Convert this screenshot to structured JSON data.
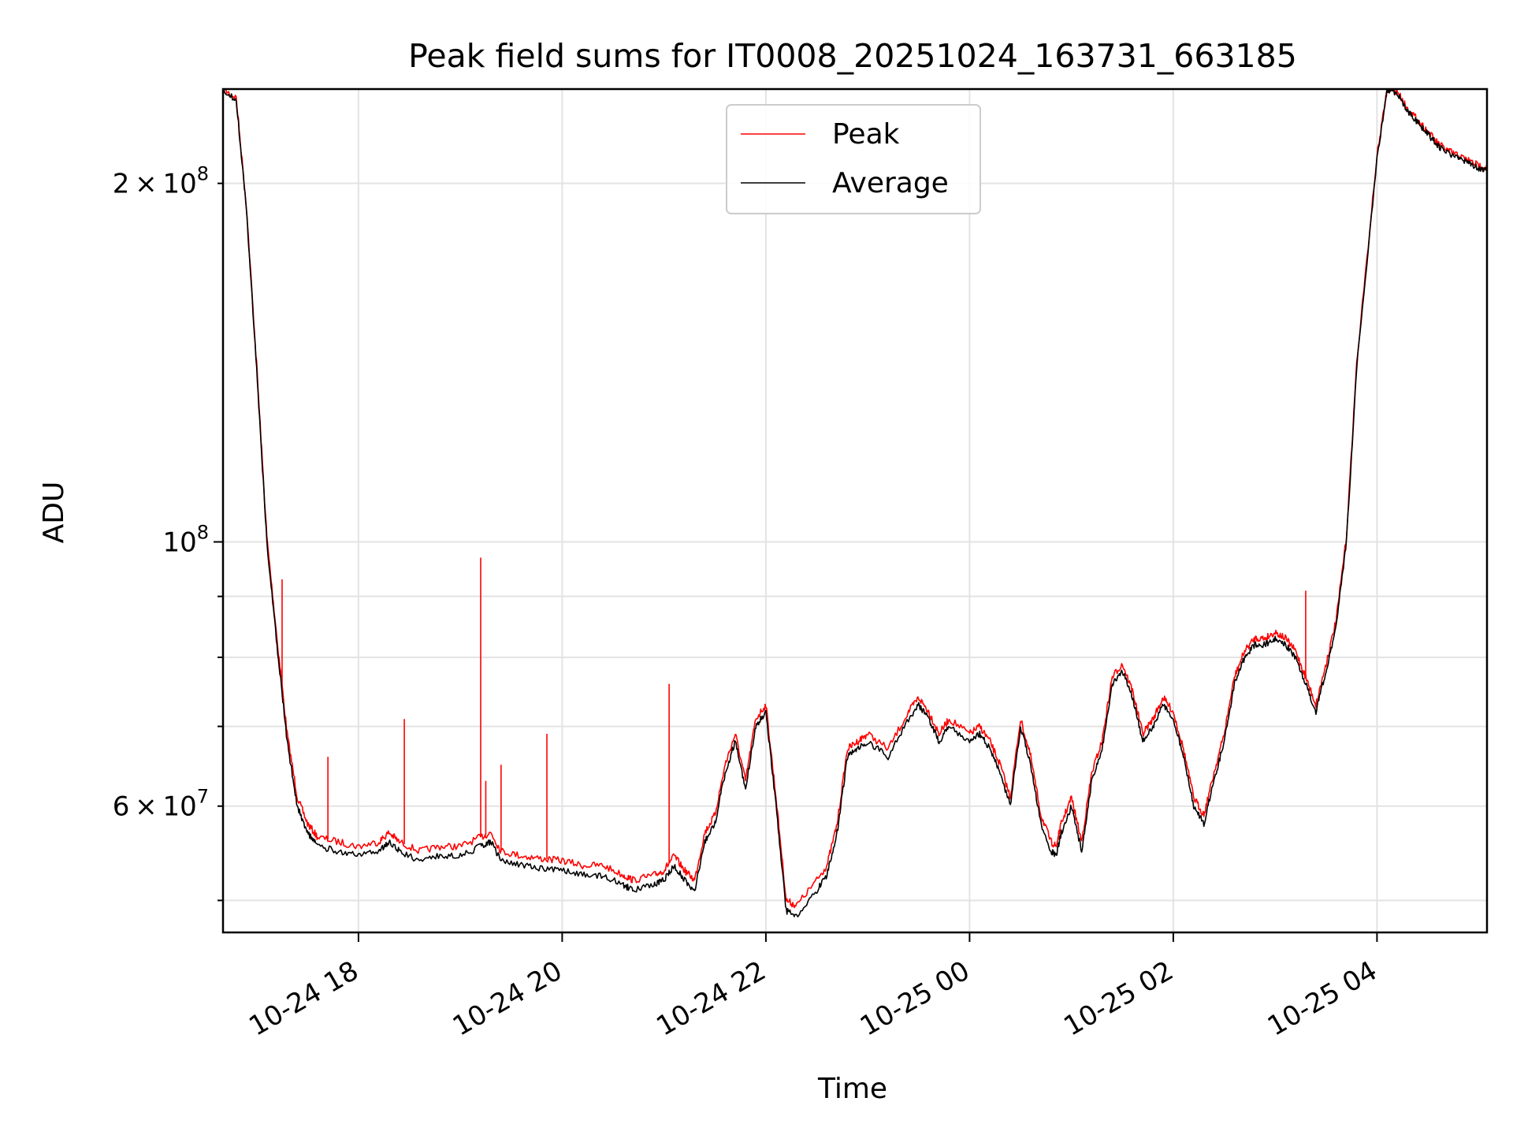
{
  "chart_data": {
    "type": "line",
    "title": "Peak field sums for IT0008_20251024_163731_663185",
    "xlabel": "Time",
    "ylabel": "ADU",
    "yscale": "log",
    "xlim": [
      16.67,
      29.08
    ],
    "ylim": [
      47000000,
      240000000
    ],
    "grid": true,
    "legend_position": "upper center",
    "x_ticks": [
      {
        "value": 18,
        "label": "10-24 18"
      },
      {
        "value": 20,
        "label": "10-24 20"
      },
      {
        "value": 22,
        "label": "10-24 22"
      },
      {
        "value": 24,
        "label": "10-25 00"
      },
      {
        "value": 26,
        "label": "10-25 02"
      },
      {
        "value": 28,
        "label": "10-25 04"
      }
    ],
    "y_ticks_major": [
      {
        "value": 100000000,
        "base": "10",
        "exp": "8",
        "label": "10^8"
      }
    ],
    "y_ticks_minor": [
      {
        "value": 60000000,
        "mant": "6",
        "base": "10",
        "exp": "7",
        "label": "6×10^7"
      },
      {
        "value": 200000000,
        "mant": "2",
        "base": "10",
        "exp": "8",
        "label": "2×10^8"
      }
    ],
    "y_gridlines": [
      50000000,
      60000000,
      70000000,
      80000000,
      90000000,
      100000000,
      200000000
    ],
    "series": [
      {
        "name": "Average",
        "color": "#000000",
        "x": [
          16.67,
          16.8,
          16.9,
          17.0,
          17.1,
          17.2,
          17.3,
          17.4,
          17.5,
          17.6,
          17.8,
          18.0,
          18.2,
          18.3,
          18.4,
          18.6,
          18.8,
          19.0,
          19.2,
          19.3,
          19.4,
          19.6,
          19.8,
          20.0,
          20.2,
          20.4,
          20.6,
          20.7,
          20.9,
          21.0,
          21.1,
          21.2,
          21.3,
          21.4,
          21.5,
          21.6,
          21.7,
          21.8,
          21.9,
          22.0,
          22.1,
          22.2,
          22.3,
          22.5,
          22.6,
          22.7,
          22.8,
          22.9,
          23.0,
          23.2,
          23.4,
          23.5,
          23.6,
          23.7,
          23.8,
          24.0,
          24.1,
          24.2,
          24.3,
          24.4,
          24.5,
          24.6,
          24.7,
          24.8,
          24.85,
          24.9,
          25.0,
          25.1,
          25.2,
          25.3,
          25.4,
          25.5,
          25.6,
          25.7,
          25.8,
          25.9,
          26.0,
          26.1,
          26.2,
          26.3,
          26.4,
          26.5,
          26.6,
          26.7,
          26.8,
          26.9,
          27.0,
          27.1,
          27.2,
          27.3,
          27.4,
          27.5,
          27.6,
          27.7,
          27.8,
          28.0,
          28.1,
          28.2,
          28.3,
          28.4,
          28.5,
          28.6,
          28.7,
          28.8,
          28.9,
          29.0,
          29.08
        ],
        "values": [
          240000000,
          235000000,
          190000000,
          140000000,
          100000000,
          82000000,
          68000000,
          60000000,
          57000000,
          55500000,
          55000000,
          54500000,
          55000000,
          56000000,
          55000000,
          54000000,
          54500000,
          54500000,
          55500000,
          56000000,
          54000000,
          53500000,
          53200000,
          53000000,
          52500000,
          52500000,
          51500000,
          51000000,
          51500000,
          52000000,
          53500000,
          52000000,
          51000000,
          56000000,
          58000000,
          64000000,
          68000000,
          62000000,
          70000000,
          72000000,
          60000000,
          49000000,
          48500000,
          51000000,
          52500000,
          57000000,
          66000000,
          67000000,
          68000000,
          66000000,
          71000000,
          73000000,
          71000000,
          68000000,
          70000000,
          68000000,
          69000000,
          67000000,
          64000000,
          60000000,
          70000000,
          65000000,
          58000000,
          55000000,
          54500000,
          57000000,
          60000000,
          55000000,
          63000000,
          67000000,
          76000000,
          78000000,
          74000000,
          68000000,
          70000000,
          73000000,
          71000000,
          66000000,
          60000000,
          58000000,
          63000000,
          68000000,
          76000000,
          80000000,
          82000000,
          82000000,
          83000000,
          82000000,
          80000000,
          76000000,
          72000000,
          78000000,
          85000000,
          100000000,
          140000000,
          210000000,
          240000000,
          238000000,
          230000000,
          225000000,
          220000000,
          215000000,
          212000000,
          210000000,
          208000000,
          206000000,
          205000000
        ]
      },
      {
        "name": "Peak",
        "color": "#ff0000",
        "x": [
          16.67,
          16.8,
          16.9,
          17.0,
          17.1,
          17.2,
          17.3,
          17.4,
          17.5,
          17.6,
          17.8,
          18.0,
          18.2,
          18.3,
          18.4,
          18.6,
          18.8,
          19.0,
          19.2,
          19.3,
          19.4,
          19.6,
          19.8,
          20.0,
          20.2,
          20.4,
          20.6,
          20.7,
          20.9,
          21.0,
          21.1,
          21.2,
          21.3,
          21.4,
          21.5,
          21.6,
          21.7,
          21.8,
          21.9,
          22.0,
          22.1,
          22.2,
          22.3,
          22.5,
          22.6,
          22.7,
          22.8,
          22.9,
          23.0,
          23.2,
          23.4,
          23.5,
          23.6,
          23.7,
          23.8,
          24.0,
          24.1,
          24.2,
          24.3,
          24.4,
          24.5,
          24.6,
          24.7,
          24.8,
          24.85,
          24.9,
          25.0,
          25.1,
          25.2,
          25.3,
          25.4,
          25.5,
          25.6,
          25.7,
          25.8,
          25.9,
          26.0,
          26.1,
          26.2,
          26.3,
          26.4,
          26.5,
          26.6,
          26.7,
          26.8,
          26.9,
          27.0,
          27.1,
          27.2,
          27.3,
          27.4,
          27.5,
          27.6,
          27.7,
          27.8,
          28.0,
          28.1,
          28.2,
          28.3,
          28.4,
          28.5,
          28.6,
          28.7,
          28.8,
          28.9,
          29.0,
          29.08
        ],
        "values": [
          240000000,
          236000000,
          191000000,
          141000000,
          101000000,
          83000000,
          69000000,
          61000000,
          58000000,
          56500000,
          56000000,
          55500000,
          56000000,
          57000000,
          56000000,
          55000000,
          55500000,
          55500000,
          56500000,
          57000000,
          55000000,
          54500000,
          54200000,
          54000000,
          53500000,
          53500000,
          52500000,
          52000000,
          52500000,
          53000000,
          54500000,
          53000000,
          52000000,
          57000000,
          59000000,
          65000000,
          69000000,
          63000000,
          71000000,
          73000000,
          61000000,
          50000000,
          49500000,
          52000000,
          53500000,
          58000000,
          67000000,
          68000000,
          69000000,
          67000000,
          72000000,
          74000000,
          72000000,
          69000000,
          71000000,
          69000000,
          70000000,
          68000000,
          65000000,
          61000000,
          71000000,
          66000000,
          59000000,
          56000000,
          55500000,
          58000000,
          61000000,
          56000000,
          64000000,
          68000000,
          77000000,
          79000000,
          75000000,
          69000000,
          71000000,
          74000000,
          72000000,
          67000000,
          61000000,
          59000000,
          64000000,
          69000000,
          77000000,
          81000000,
          83000000,
          83000000,
          84000000,
          83000000,
          81000000,
          77000000,
          73000000,
          79000000,
          86000000,
          101000000,
          141000000,
          211000000,
          240000000,
          239000000,
          231000000,
          226000000,
          221000000,
          216000000,
          213000000,
          211000000,
          209000000,
          207000000,
          206000000
        ],
        "spikes": [
          {
            "x": 17.25,
            "value": 93000000
          },
          {
            "x": 17.7,
            "value": 66000000
          },
          {
            "x": 18.45,
            "value": 71000000
          },
          {
            "x": 19.2,
            "value": 97000000
          },
          {
            "x": 19.25,
            "value": 63000000
          },
          {
            "x": 19.4,
            "value": 65000000
          },
          {
            "x": 19.85,
            "value": 69000000
          },
          {
            "x": 21.05,
            "value": 76000000
          },
          {
            "x": 27.3,
            "value": 91000000
          }
        ]
      }
    ]
  }
}
